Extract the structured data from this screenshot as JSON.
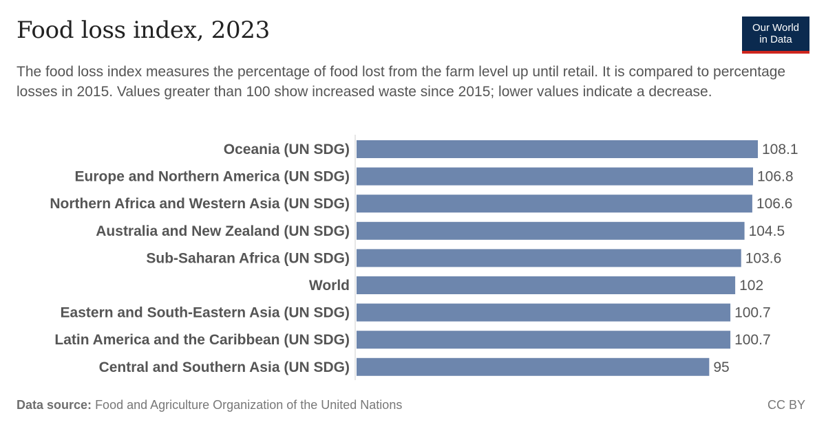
{
  "header": {
    "title": "Food loss index, 2023",
    "subtitle": "The food loss index measures the percentage of food lost from the farm level up until retail. It is compared to percentage losses in 2015. Values greater than 100 show increased waste since 2015; lower values indicate a decrease."
  },
  "logo": {
    "line1": "Our World",
    "line2": "in Data"
  },
  "footer": {
    "source_label": "Data source:",
    "source_text": "Food and Agriculture Organization of the United Nations",
    "license": "CC BY"
  },
  "colors": {
    "bar": "#6d86ad",
    "axis": "#cccccc"
  },
  "chart_data": {
    "type": "bar",
    "orientation": "horizontal",
    "categories": [
      "Oceania (UN SDG)",
      "Europe and Northern America (UN SDG)",
      "Northern Africa and Western Asia (UN SDG)",
      "Australia and New Zealand (UN SDG)",
      "Sub-Saharan Africa (UN SDG)",
      "World",
      "Eastern and South-Eastern Asia (UN SDG)",
      "Latin America and the Caribbean (UN SDG)",
      "Central and Southern Asia (UN SDG)"
    ],
    "values": [
      108.1,
      106.8,
      106.6,
      104.5,
      103.6,
      102,
      100.7,
      100.7,
      95
    ],
    "value_labels": [
      "108.1",
      "106.8",
      "106.6",
      "104.5",
      "103.6",
      "102",
      "100.7",
      "100.7",
      "95"
    ],
    "xlim": [
      0,
      108.1
    ]
  }
}
